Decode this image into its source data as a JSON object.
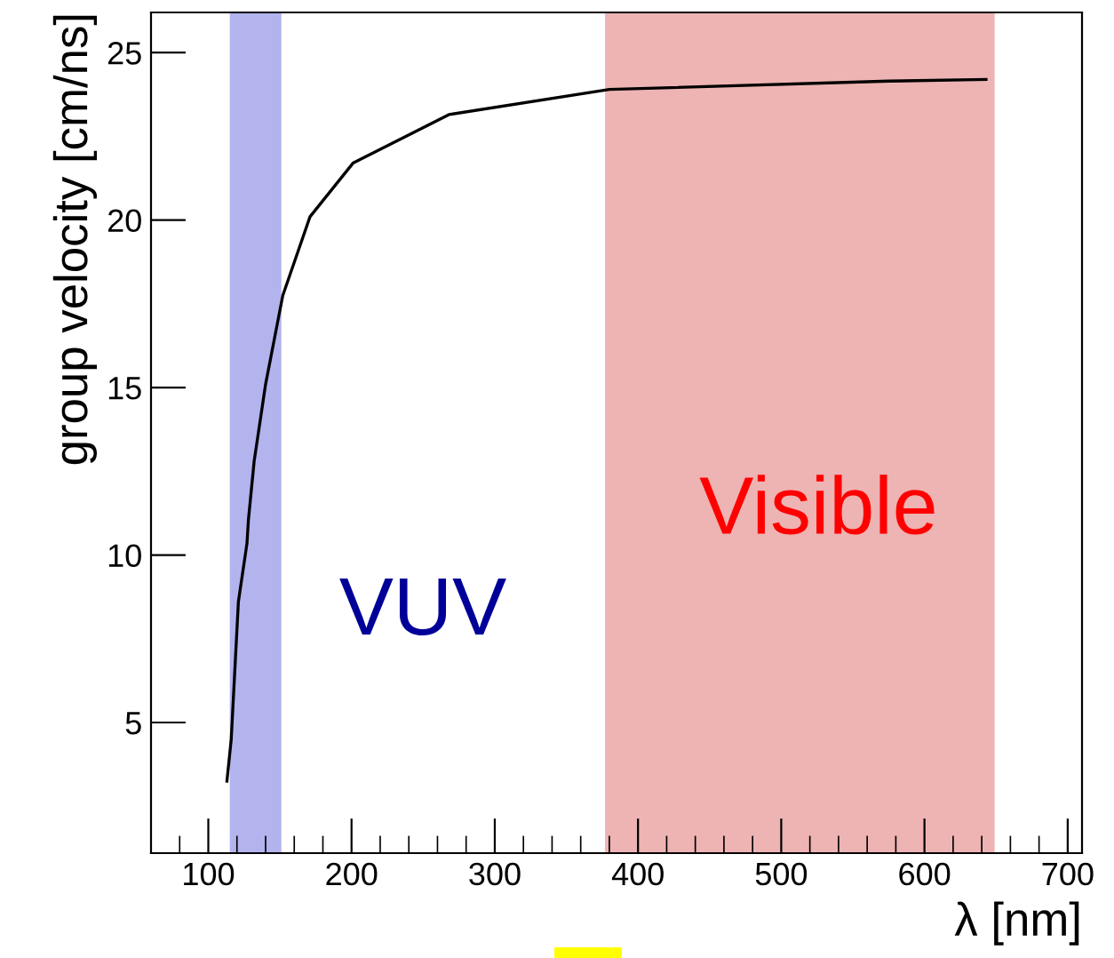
{
  "chart_data": {
    "type": "line",
    "xlabel": "λ [nm]",
    "ylabel": "group velocity [cm/ns]",
    "x": [
      113,
      116,
      121,
      127,
      128,
      132,
      140,
      152,
      171,
      201,
      268,
      380,
      575,
      643
    ],
    "series": [
      {
        "color": "#000000",
        "values": [
          3.25,
          4.5,
          8.6,
          10.35,
          11.05,
          12.8,
          15.1,
          17.75,
          20.1,
          21.7,
          23.15,
          23.9,
          24.15,
          24.2
        ]
      }
    ],
    "xlim": [
      60,
      710
    ],
    "xticks": [
      100,
      200,
      300,
      400,
      500,
      600,
      700
    ],
    "ylim": [
      1.1,
      26.2
    ],
    "yticks": [
      5,
      10,
      15,
      20,
      25
    ],
    "bands": [
      {
        "axis": "x",
        "from": 115,
        "to": 151,
        "color": "#b3b3ee"
      },
      {
        "axis": "x",
        "from": 377,
        "to": 649,
        "color": "#eeb3b3"
      }
    ],
    "annotations": [
      "VUV",
      "Visible"
    ],
    "grid": false,
    "legend": false,
    "marker": "none",
    "line_style": "solid"
  }
}
